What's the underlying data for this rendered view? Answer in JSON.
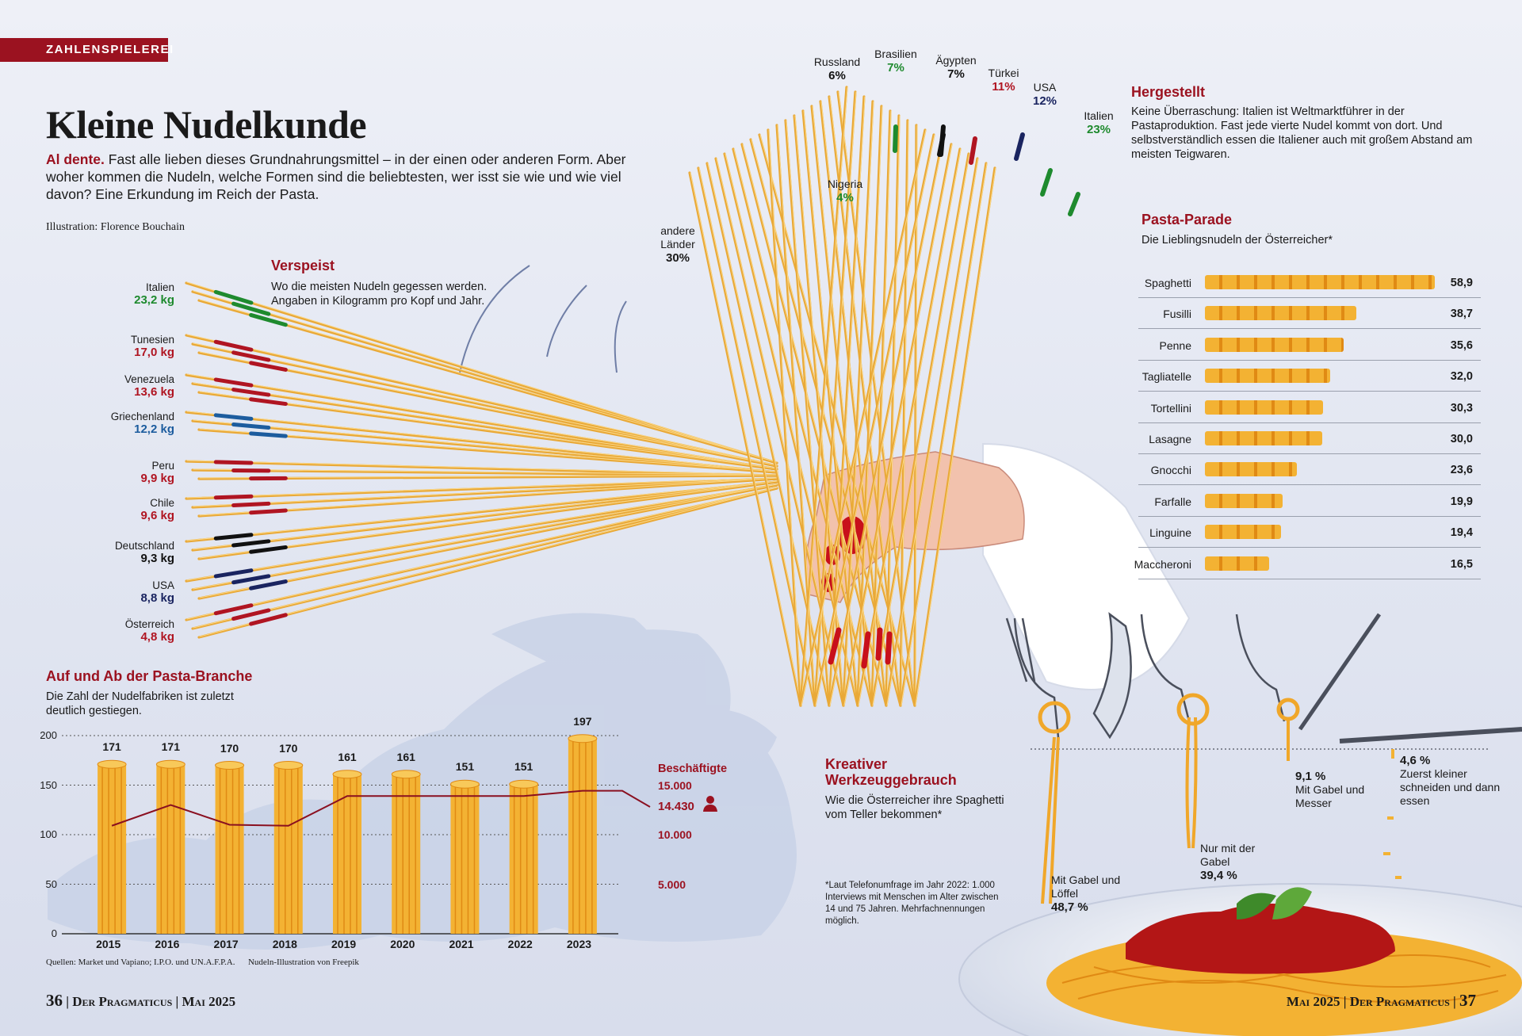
{
  "tag": "ZAHLENSPIELEREI",
  "title": "Kleine Nudelkunde",
  "intro": {
    "lead": "Al dente.",
    "text": " Fast alle lieben dieses Grundnahrungsmittel – in der einen oder anderen Form. Aber woher kommen die Nudeln, welche Formen sind die beliebtesten, wer isst sie wie und wie viel davon? Eine Erkundung im Reich der Pasta."
  },
  "credit": "Illustration: Florence Bouchain",
  "verspeist": {
    "heading": "Verspeist",
    "subtitle": "Wo die meisten Nudeln gegessen werden. Angaben in Kilogramm pro Kopf und Jahr.",
    "countries": [
      {
        "name": "Italien",
        "value": "23,2 kg",
        "color": "#1e8a2e"
      },
      {
        "name": "Tunesien",
        "value": "17,0 kg",
        "color": "#b01522"
      },
      {
        "name": "Venezuela",
        "value": "13,6 kg",
        "color": "#b01522"
      },
      {
        "name": "Griechenland",
        "value": "12,2 kg",
        "color": "#1c5c9e"
      },
      {
        "name": "Peru",
        "value": "9,9 kg",
        "color": "#b01522"
      },
      {
        "name": "Chile",
        "value": "9,6 kg",
        "color": "#b01522"
      },
      {
        "name": "Deutschland",
        "value": "9,3 kg",
        "color": "#111111"
      },
      {
        "name": "USA",
        "value": "8,8 kg",
        "color": "#1a2460"
      },
      {
        "name": "Österreich",
        "value": "4,8 kg",
        "color": "#b01522"
      }
    ]
  },
  "hergestellt": {
    "heading": "Hergestellt",
    "text": "Keine Überraschung: Italien ist Weltmarktführer in der Pastaproduktion. Fast jede vierte Nudel kommt von dort. Und selbstverständlich essen die Italiener auch mit großem Abstand am meisten Teigwaren.",
    "producers": [
      {
        "name": "Russland",
        "value": "6%",
        "color": "#111111"
      },
      {
        "name": "Brasilien",
        "value": "7%",
        "color": "#1e8a2e"
      },
      {
        "name": "Ägypten",
        "value": "7%",
        "color": "#111111"
      },
      {
        "name": "Türkei",
        "value": "11%",
        "color": "#b01522"
      },
      {
        "name": "USA",
        "value": "12%",
        "color": "#1a2460"
      },
      {
        "name": "Italien",
        "value": "23%",
        "color": "#1e8a2e"
      },
      {
        "name": "Nigeria",
        "value": "4%",
        "color": "#1e8a2e"
      }
    ],
    "others": {
      "name": "andere Länder",
      "value": "30%"
    }
  },
  "pasta_parade": {
    "heading": "Pasta-Parade",
    "subtitle": "Die Lieblingsnudeln der Österreicher*",
    "items": [
      {
        "name": "Spaghetti",
        "value": "58,9",
        "num": 58.9
      },
      {
        "name": "Fusilli",
        "value": "38,7",
        "num": 38.7
      },
      {
        "name": "Penne",
        "value": "35,6",
        "num": 35.6
      },
      {
        "name": "Tagliatelle",
        "value": "32,0",
        "num": 32.0
      },
      {
        "name": "Tortellini",
        "value": "30,3",
        "num": 30.3
      },
      {
        "name": "Lasagne",
        "value": "30,0",
        "num": 30.0
      },
      {
        "name": "Gnocchi",
        "value": "23,6",
        "num": 23.6
      },
      {
        "name": "Farfalle",
        "value": "19,9",
        "num": 19.9
      },
      {
        "name": "Linguine",
        "value": "19,4",
        "num": 19.4
      },
      {
        "name": "Maccheroni",
        "value": "16,5",
        "num": 16.5
      }
    ]
  },
  "branche": {
    "heading": "Auf und Ab der Pasta-Branche",
    "subtitle": "Die Zahl der Nudelfabriken ist zuletzt deutlich gestiegen.",
    "employees_label": "Beschäftigte",
    "employees_current": "14.430",
    "source": "Quellen: Market und Vapiano; I.P.O. und UN.A.F.P.A.      Nudeln-Illustration von Freepik"
  },
  "chart_data": {
    "type": "bar",
    "categories": [
      "2015",
      "2016",
      "2017",
      "2018",
      "2019",
      "2020",
      "2021",
      "2022",
      "2023"
    ],
    "series": [
      {
        "values": [
          171,
          171,
          170,
          170,
          161,
          161,
          151,
          151,
          197
        ]
      },
      {
        "name": "Beschäftigte",
        "values": [
          10900,
          13000,
          11000,
          10900,
          13900,
          13900,
          13900,
          13900,
          14430
        ]
      }
    ],
    "ylim": [
      0,
      200
    ],
    "yticks": [
      "0",
      "50",
      "100",
      "150",
      "200"
    ],
    "y2ticks": [
      "5.000",
      "10.000",
      "15.000"
    ],
    "ylim2": [
      0,
      20000
    ]
  },
  "werkzeug": {
    "heading_line1": "Kreativer",
    "heading_line2": "Werkzeuggebrauch",
    "subtitle": "Wie die Österreicher ihre Spaghetti vom Teller bekommen*",
    "footnote": "*Laut Telefonumfrage im Jahr 2022: 1.000 Interviews mit Menschen im Alter zwischen 14 und 75 Jahren. Mehrfachnennungen möglich.",
    "methods": [
      {
        "label": "Mit Gabel und Löffel",
        "value": "48,7 %"
      },
      {
        "label": "Nur mit der Gabel",
        "value": "39,4 %"
      },
      {
        "label": "Mit Gabel und Messer",
        "value": "9,1 %"
      },
      {
        "label": "Zuerst kleiner schneiden und dann essen",
        "value": "4,6 %"
      }
    ]
  },
  "footer": {
    "left_page": "36",
    "left_text": " | Der Pragmaticus | Mai 2025",
    "right_text": "Mai 2025 | Der Pragmaticus | ",
    "right_page": "37"
  },
  "colors": {
    "accent": "#9b1220",
    "pasta": "#f3b233",
    "background": "#e3e7f2"
  }
}
